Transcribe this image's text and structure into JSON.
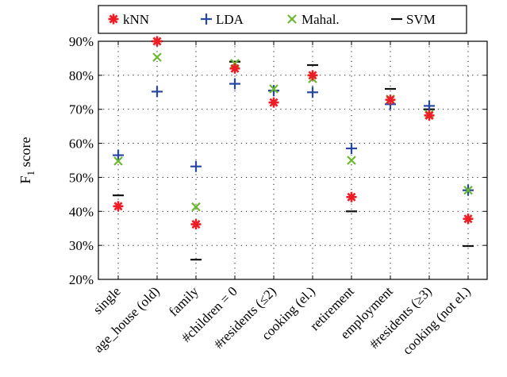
{
  "chart_data": {
    "type": "scatter",
    "ylabel": "F",
    "ylabel_subscript": "1",
    "ylabel_suffix": " score",
    "ylim": [
      20,
      90
    ],
    "yticks": [
      20,
      30,
      40,
      50,
      60,
      70,
      80,
      90
    ],
    "ytick_labels": [
      "20%",
      "30%",
      "40%",
      "50%",
      "60%",
      "70%",
      "80%",
      "90%"
    ],
    "grid": true,
    "legend_position": "top",
    "categories": [
      "single",
      "age_house (old)",
      "family",
      "#children = 0",
      "#residents (≤2)",
      "cooking (el.)",
      "retirement",
      "employment",
      "#residents (≥3)",
      "cooking (not el.)"
    ],
    "series": [
      {
        "name": "kNN",
        "marker": "asterisk",
        "color": "#ee1c24",
        "values": [
          41.5,
          90,
          36.2,
          82,
          72,
          80,
          44.2,
          72.8,
          68.2,
          37.8
        ]
      },
      {
        "name": "LDA",
        "marker": "plus",
        "color": "#2747a6",
        "values": [
          56.5,
          75.2,
          53.2,
          77.5,
          75.5,
          75,
          58.5,
          71.5,
          71,
          46.2
        ]
      },
      {
        "name": "Mahal.",
        "marker": "cross",
        "color": "#6ab92d",
        "values": [
          54.8,
          85.3,
          41.3,
          83.5,
          76,
          79,
          55,
          73,
          68.5,
          46.2
        ]
      },
      {
        "name": "SVM",
        "marker": "dash",
        "color": "#111111",
        "values": [
          44.7,
          90,
          25.8,
          84,
          75.5,
          83,
          40,
          76,
          70,
          29.8
        ]
      }
    ]
  }
}
